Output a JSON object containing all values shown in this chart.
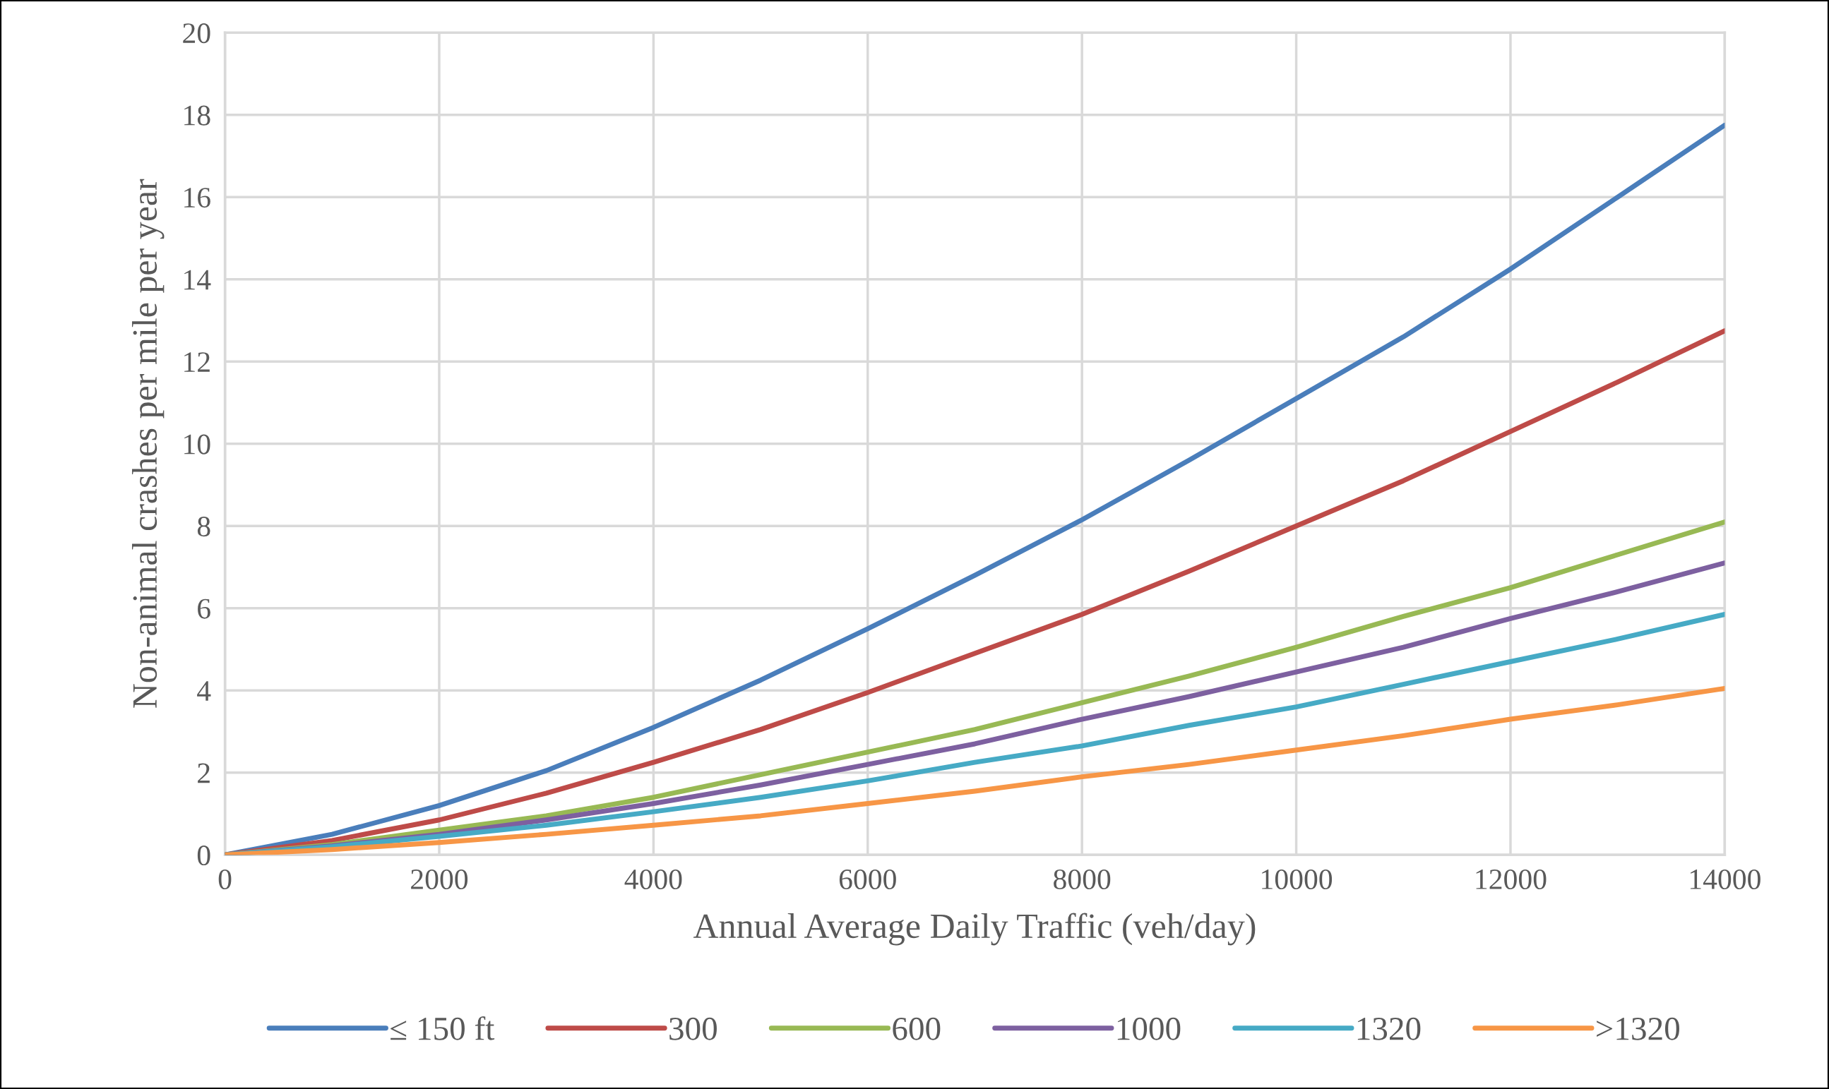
{
  "chart_data": {
    "type": "line",
    "xlabel": "Annual Average Daily Traffic (veh/day)",
    "ylabel": "Non-animal crashes per mile per year",
    "x": [
      0,
      1000,
      2000,
      3000,
      4000,
      5000,
      6000,
      7000,
      8000,
      9000,
      10000,
      11000,
      12000,
      13000,
      14000
    ],
    "xlim": [
      0,
      14000
    ],
    "xticks": [
      0,
      2000,
      4000,
      6000,
      8000,
      10000,
      12000,
      14000
    ],
    "ylim": [
      0,
      20
    ],
    "yticks": [
      0,
      2,
      4,
      6,
      8,
      10,
      12,
      14,
      16,
      18,
      20
    ],
    "grid": true,
    "legend": "bottom",
    "marker": "none",
    "line_style": "solid",
    "series": [
      {
        "name": "≤ 150 ft",
        "color": "#4a7ebb",
        "values": [
          0,
          0.5,
          1.2,
          2.05,
          3.1,
          4.25,
          5.5,
          6.8,
          8.15,
          9.6,
          11.1,
          12.6,
          14.25,
          16.0,
          17.75
        ]
      },
      {
        "name": "300",
        "color": "#be4b48",
        "values": [
          0,
          0.35,
          0.85,
          1.5,
          2.25,
          3.05,
          3.95,
          4.9,
          5.85,
          6.9,
          8.0,
          9.1,
          10.3,
          11.5,
          12.75
        ]
      },
      {
        "name": "600",
        "color": "#98b954",
        "values": [
          0,
          0.25,
          0.6,
          0.95,
          1.4,
          1.95,
          2.5,
          3.05,
          3.7,
          4.35,
          5.05,
          5.8,
          6.5,
          7.3,
          8.1
        ]
      },
      {
        "name": "1000",
        "color": "#7d60a0",
        "values": [
          0,
          0.22,
          0.5,
          0.85,
          1.25,
          1.7,
          2.2,
          2.7,
          3.3,
          3.85,
          4.45,
          5.05,
          5.75,
          6.4,
          7.1
        ]
      },
      {
        "name": "1320",
        "color": "#46aac5",
        "values": [
          0,
          0.2,
          0.45,
          0.72,
          1.05,
          1.4,
          1.8,
          2.25,
          2.65,
          3.15,
          3.6,
          4.15,
          4.7,
          5.25,
          5.85
        ]
      },
      {
        "name": ">1320",
        "color": "#f79646",
        "values": [
          0,
          0.13,
          0.3,
          0.5,
          0.72,
          0.95,
          1.25,
          1.55,
          1.9,
          2.2,
          2.55,
          2.9,
          3.3,
          3.65,
          4.05
        ]
      }
    ]
  }
}
